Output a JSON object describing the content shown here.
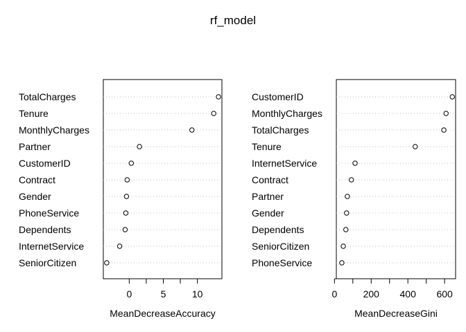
{
  "title": "rf_model",
  "chart_data": [
    {
      "type": "scatter",
      "subtype": "dotchart",
      "xlabel": "MeanDecreaseAccuracy",
      "xlim": [
        -3.8,
        13.6
      ],
      "xticks": [
        0,
        5,
        10
      ],
      "grid": "dotted horizontal lines",
      "categories": [
        "TotalCharges",
        "Tenure",
        "MonthlyCharges",
        "Partner",
        "CustomerID",
        "Contract",
        "Gender",
        "PhoneService",
        "Dependents",
        "InternetService",
        "SeniorCitizen"
      ],
      "values": [
        13.1,
        12.4,
        9.2,
        1.5,
        0.3,
        -0.3,
        -0.4,
        -0.5,
        -0.6,
        -1.4,
        -3.3
      ]
    },
    {
      "type": "scatter",
      "subtype": "dotchart",
      "xlabel": "MeanDecreaseGini",
      "xlim": [
        10,
        660
      ],
      "xticks": [
        0,
        200,
        400,
        600
      ],
      "grid": "dotted horizontal lines",
      "categories": [
        "CustomerID",
        "MonthlyCharges",
        "TotalCharges",
        "Tenure",
        "InternetService",
        "Contract",
        "Partner",
        "Gender",
        "Dependents",
        "SeniorCitizen",
        "PhoneService"
      ],
      "values": [
        642,
        608,
        596,
        440,
        112,
        92,
        70,
        66,
        62,
        48,
        40
      ]
    }
  ]
}
